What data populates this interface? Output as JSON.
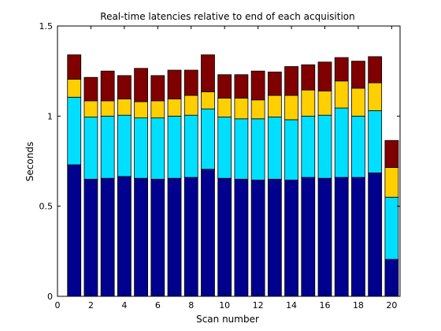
{
  "chart_data": {
    "type": "bar",
    "stacked": true,
    "title": "Real-time latencies relative to end of each acquisition",
    "xlabel": "Scan number",
    "ylabel": "Seconds",
    "xlim": [
      0,
      20.5
    ],
    "ylim": [
      0,
      1.5
    ],
    "x_ticks": [
      0,
      2,
      4,
      6,
      8,
      10,
      12,
      14,
      16,
      18,
      20
    ],
    "y_ticks": [
      0,
      0.5,
      1,
      1.5
    ],
    "y_tick_labels": [
      "0",
      "0.5",
      "1",
      "1.5"
    ],
    "grid": false,
    "legend": "none",
    "x": [
      1,
      2,
      3,
      4,
      5,
      6,
      7,
      8,
      9,
      10,
      11,
      12,
      13,
      14,
      15,
      16,
      17,
      18,
      19,
      20
    ],
    "series": [
      {
        "color": "#00008f",
        "values": [
          0.73,
          0.65,
          0.655,
          0.665,
          0.655,
          0.65,
          0.655,
          0.66,
          0.705,
          0.655,
          0.65,
          0.645,
          0.65,
          0.645,
          0.66,
          0.655,
          0.66,
          0.66,
          0.685,
          0.205
        ]
      },
      {
        "color": "#00dfff",
        "values": [
          0.375,
          0.345,
          0.345,
          0.34,
          0.335,
          0.34,
          0.345,
          0.345,
          0.335,
          0.34,
          0.335,
          0.34,
          0.345,
          0.335,
          0.34,
          0.35,
          0.385,
          0.34,
          0.345,
          0.345
        ]
      },
      {
        "color": "#ffcf00",
        "values": [
          0.1,
          0.09,
          0.085,
          0.09,
          0.09,
          0.095,
          0.095,
          0.11,
          0.095,
          0.105,
          0.115,
          0.105,
          0.12,
          0.135,
          0.145,
          0.135,
          0.15,
          0.155,
          0.155,
          0.165
        ]
      },
      {
        "color": "#800000",
        "values": [
          0.135,
          0.13,
          0.165,
          0.13,
          0.185,
          0.14,
          0.16,
          0.14,
          0.205,
          0.13,
          0.13,
          0.16,
          0.13,
          0.16,
          0.14,
          0.16,
          0.13,
          0.15,
          0.145,
          0.15
        ]
      }
    ]
  }
}
